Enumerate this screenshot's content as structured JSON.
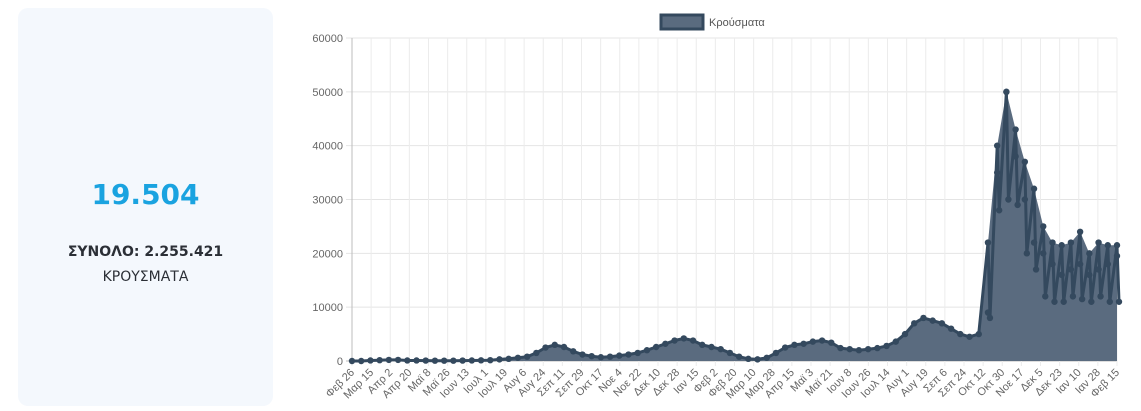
{
  "summary": {
    "daily_cases": "19.504",
    "total_label": "ΣΥΝΟΛΟ: 2.255.421",
    "cases_word": "ΚΡΟΥΣΜΑΤΑ"
  },
  "colors": {
    "accent": "#1aa3e0",
    "series_line": "#34495e",
    "series_fill": "#5a6b7f",
    "card_bg": "#f4f8fd"
  },
  "chart_data": {
    "type": "area",
    "legend_position": "top",
    "grid": true,
    "ylim": [
      0,
      60000
    ],
    "yticks": [
      0,
      10000,
      20000,
      30000,
      40000,
      50000,
      60000
    ],
    "x_tick_labels": [
      "Φεβ 26",
      "Μαρ 15",
      "Απρ 2",
      "Απρ 20",
      "Μαϊ 8",
      "Μαϊ 26",
      "Ιουν 13",
      "Ιουλ 1",
      "Ιουλ 19",
      "Αυγ 6",
      "Αυγ 24",
      "Σεπ 11",
      "Σεπ 29",
      "Οκτ 17",
      "Νοε 4",
      "Νοε 22",
      "Δεκ 10",
      "Δεκ 28",
      "Ιαν 15",
      "Φεβ 2",
      "Φεβ 20",
      "Μαρ 10",
      "Μαρ 28",
      "Απρ 15",
      "Μαϊ 3",
      "Μαϊ 21",
      "Ιουν 8",
      "Ιουν 26",
      "Ιουλ 14",
      "Αυγ 1",
      "Αυγ 19",
      "Σεπ 6",
      "Σεπ 24",
      "Οκτ 12",
      "Οκτ 30",
      "Νοε 17",
      "Δεκ 5",
      "Δεκ 23",
      "Ιαν 10",
      "Ιαν 28",
      "Φεβ 15"
    ],
    "series": [
      {
        "name": "Κρούσματα",
        "values": [
          0,
          0,
          100,
          150,
          200,
          200,
          100,
          100,
          80,
          60,
          60,
          60,
          80,
          100,
          120,
          150,
          300,
          400,
          600,
          800,
          1500,
          2500,
          3000,
          2600,
          1800,
          1200,
          900,
          700,
          800,
          1000,
          1200,
          1500,
          2000,
          2600,
          3200,
          3800,
          4200,
          3800,
          3000,
          2600,
          2200,
          1500,
          800,
          400,
          300,
          600,
          1500,
          2500,
          3000,
          3200,
          3600,
          3800,
          3400,
          2400,
          2200,
          2000,
          2200,
          2400,
          2800,
          3600,
          5000,
          7000,
          8000,
          7500,
          7000,
          6000,
          5000,
          4500,
          5000,
          9000,
          35000,
          50000,
          38000,
          30000,
          22000,
          20000,
          18000,
          16000,
          17000,
          18000,
          16000,
          17000,
          18000,
          19504
        ],
        "highs": [
          0,
          0,
          100,
          150,
          200,
          200,
          100,
          100,
          80,
          60,
          60,
          60,
          80,
          100,
          120,
          150,
          300,
          400,
          600,
          800,
          1500,
          2500,
          3000,
          2600,
          1800,
          1200,
          900,
          700,
          800,
          1000,
          1200,
          1500,
          2000,
          2600,
          3200,
          3800,
          4200,
          3800,
          3000,
          2600,
          2200,
          1500,
          800,
          400,
          300,
          600,
          1500,
          2500,
          3000,
          3200,
          3600,
          3800,
          3400,
          2400,
          2200,
          2000,
          2200,
          2400,
          2800,
          3600,
          5000,
          7000,
          8000,
          7500,
          7000,
          6000,
          5000,
          4500,
          5000,
          22000,
          40000,
          50000,
          43000,
          37000,
          32000,
          25000,
          22000,
          21500,
          22000,
          24000,
          20000,
          22000,
          21500,
          21500
        ],
        "lows": [
          0,
          0,
          100,
          150,
          200,
          200,
          100,
          100,
          80,
          60,
          60,
          60,
          80,
          100,
          120,
          150,
          300,
          400,
          600,
          800,
          1500,
          2500,
          3000,
          2600,
          1800,
          1200,
          900,
          700,
          800,
          1000,
          1200,
          1500,
          2000,
          2600,
          3200,
          3800,
          4200,
          3800,
          3000,
          2600,
          2200,
          1500,
          800,
          400,
          300,
          600,
          1500,
          2500,
          3000,
          3200,
          3600,
          3800,
          3400,
          2400,
          2200,
          2000,
          2200,
          2400,
          2800,
          3600,
          5000,
          7000,
          8000,
          7500,
          7000,
          6000,
          5000,
          4500,
          5000,
          8000,
          28000,
          30000,
          29000,
          20000,
          17000,
          12000,
          11000,
          11000,
          12000,
          11500,
          11000,
          12000,
          11000,
          11000
        ]
      }
    ]
  }
}
